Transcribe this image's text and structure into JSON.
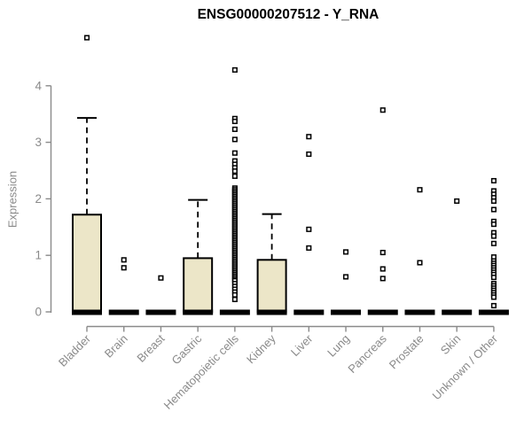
{
  "chart_data": {
    "type": "boxplot",
    "title": "ENSG00000207512 - Y_RNA",
    "ylabel": "Expression",
    "xlabel": "",
    "ylim": [
      0,
      4.9
    ],
    "yticks": [
      0,
      1,
      2,
      3,
      4
    ],
    "grid": false,
    "legend": false,
    "xticklabel_rotation": 45,
    "box_fill": "#ece6c8",
    "box_stroke": "#000000",
    "outlier_fill": "#ffffff",
    "axis_color": "#8a8a8a",
    "title_color": "#000000",
    "categories": [
      "Bladder",
      "Brain",
      "Breast",
      "Gastric",
      "Hematopoietic cells",
      "Kidney",
      "Liver",
      "Lung",
      "Pancreas",
      "Prostate",
      "Skin",
      "Unknown / Other"
    ],
    "series": [
      {
        "category": "Bladder",
        "q1": 0,
        "median": 0,
        "q3": 1.72,
        "whisker_low": 0,
        "whisker_high": 3.43,
        "outliers": [
          4.85
        ]
      },
      {
        "category": "Brain",
        "q1": 0,
        "median": 0,
        "q3": 0,
        "whisker_low": 0,
        "whisker_high": 0,
        "outliers": [
          0.92,
          0.78
        ]
      },
      {
        "category": "Breast",
        "q1": 0,
        "median": 0,
        "q3": 0,
        "whisker_low": 0,
        "whisker_high": 0,
        "outliers": [
          0.6
        ]
      },
      {
        "category": "Gastric",
        "q1": 0,
        "median": 0,
        "q3": 0.95,
        "whisker_low": 0,
        "whisker_high": 1.98,
        "outliers": []
      },
      {
        "category": "Hematopoietic cells",
        "q1": 0,
        "median": 0,
        "q3": 0,
        "whisker_low": 0,
        "whisker_high": 0,
        "outliers": [
          4.28,
          3.42,
          3.37,
          3.23,
          3.05,
          2.81,
          2.67,
          2.61,
          2.55,
          2.49,
          2.4,
          2.19,
          2.16,
          2.13,
          2.1,
          2.07,
          2.04,
          2.01,
          1.98,
          1.95,
          1.92,
          1.89,
          1.86,
          1.83,
          1.8,
          1.77,
          1.74,
          1.71,
          1.68,
          1.65,
          1.62,
          1.59,
          1.56,
          1.53,
          1.5,
          1.47,
          1.44,
          1.41,
          1.38,
          1.35,
          1.32,
          1.29,
          1.26,
          1.23,
          1.2,
          1.17,
          1.14,
          1.11,
          1.08,
          1.05,
          1.02,
          0.99,
          0.96,
          0.93,
          0.9,
          0.87,
          0.84,
          0.81,
          0.78,
          0.75,
          0.72,
          0.69,
          0.66,
          0.63,
          0.6,
          0.57,
          0.55,
          0.5,
          0.45,
          0.4,
          0.35,
          0.3,
          0.22
        ]
      },
      {
        "category": "Kidney",
        "q1": 0,
        "median": 0,
        "q3": 0.92,
        "whisker_low": 0,
        "whisker_high": 1.73,
        "outliers": []
      },
      {
        "category": "Liver",
        "q1": 0,
        "median": 0,
        "q3": 0,
        "whisker_low": 0,
        "whisker_high": 0,
        "outliers": [
          3.1,
          2.79,
          1.46,
          1.13
        ]
      },
      {
        "category": "Lung",
        "q1": 0,
        "median": 0,
        "q3": 0,
        "whisker_low": 0,
        "whisker_high": 0,
        "outliers": [
          1.06,
          0.62
        ]
      },
      {
        "category": "Pancreas",
        "q1": 0,
        "median": 0,
        "q3": 0,
        "whisker_low": 0,
        "whisker_high": 0,
        "outliers": [
          3.57,
          1.05,
          0.76,
          0.59
        ]
      },
      {
        "category": "Prostate",
        "q1": 0,
        "median": 0,
        "q3": 0,
        "whisker_low": 0,
        "whisker_high": 0,
        "outliers": [
          2.16,
          0.87
        ]
      },
      {
        "category": "Skin",
        "q1": 0,
        "median": 0,
        "q3": 0,
        "whisker_low": 0,
        "whisker_high": 0,
        "outliers": [
          1.96
        ]
      },
      {
        "category": "Unknown / Other",
        "q1": 0,
        "median": 0,
        "q3": 0,
        "whisker_low": 0,
        "whisker_high": 0,
        "outliers": [
          2.32,
          2.14,
          2.08,
          2.02,
          1.96,
          1.81,
          1.6,
          1.55,
          1.4,
          1.34,
          1.21,
          0.97,
          0.9,
          0.86,
          0.82,
          0.78,
          0.74,
          0.7,
          0.66,
          0.61,
          0.5,
          0.46,
          0.42,
          0.38,
          0.34,
          0.3,
          0.26,
          0.11
        ]
      }
    ]
  }
}
